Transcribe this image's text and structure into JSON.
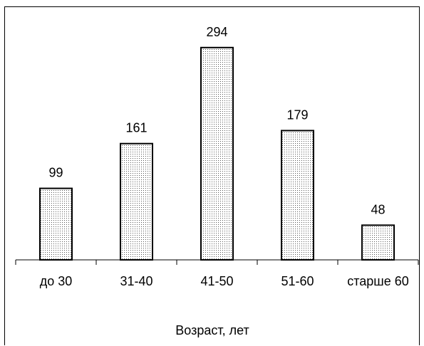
{
  "chart_data": {
    "type": "bar",
    "categories": [
      "до 30",
      "31-40",
      "41-50",
      "51-60",
      "старше 60"
    ],
    "values": [
      99,
      161,
      294,
      179,
      48
    ],
    "data_labels": [
      "99",
      "161",
      "294",
      "179",
      "48"
    ],
    "xlabel": "Возраст, лет",
    "ylabel": "",
    "ylim": [
      0,
      350
    ],
    "grid": false,
    "legend": "none",
    "colors": {
      "bar_fill": "#ffffff",
      "bar_pattern": "dotted",
      "stroke": "#000000"
    }
  }
}
